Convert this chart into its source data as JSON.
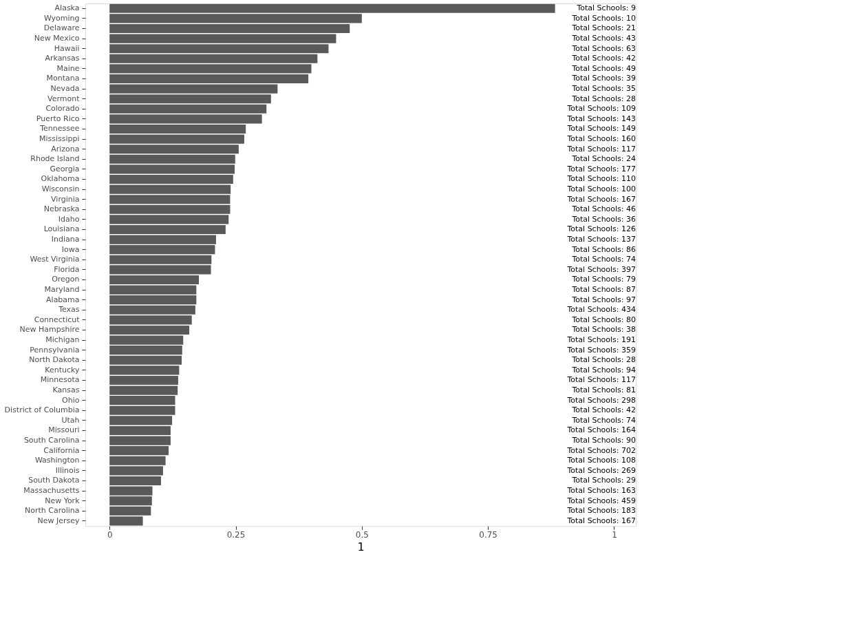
{
  "chart_data": {
    "type": "bar",
    "orientation": "horizontal",
    "xlabel": "1",
    "color": "#595959",
    "categories": [
      "Alaska",
      "Wyoming",
      "Delaware",
      "New Mexico",
      "Hawaii",
      "Arkansas",
      "Maine",
      "Montana",
      "Nevada",
      "Vermont",
      "Colorado",
      "Puerto Rico",
      "Tennessee",
      "Mississippi",
      "Arizona",
      "Rhode Island",
      "Georgia",
      "Oklahoma",
      "Wisconsin",
      "Virginia",
      "Nebraska",
      "Idaho",
      "Louisiana",
      "Indiana",
      "Iowa",
      "West Virginia",
      "Florida",
      "Oregon",
      "Maryland",
      "Alabama",
      "Texas",
      "Connecticut",
      "New Hampshire",
      "Michigan",
      "Pennsylvania",
      "North Dakota",
      "Kentucky",
      "Minnesota",
      "Kansas",
      "Ohio",
      "District of Columbia",
      "Utah",
      "Missouri",
      "South Carolina",
      "California",
      "Washington",
      "Illinois",
      "South Dakota",
      "Massachusetts",
      "New York",
      "North Carolina",
      "New Jersey"
    ],
    "values": [
      0.883,
      0.5,
      0.476,
      0.449,
      0.434,
      0.412,
      0.4,
      0.394,
      0.333,
      0.32,
      0.311,
      0.302,
      0.27,
      0.267,
      0.256,
      0.249,
      0.248,
      0.245,
      0.24,
      0.239,
      0.239,
      0.236,
      0.23,
      0.211,
      0.209,
      0.202,
      0.201,
      0.177,
      0.172,
      0.172,
      0.17,
      0.163,
      0.158,
      0.146,
      0.144,
      0.143,
      0.138,
      0.136,
      0.135,
      0.13,
      0.13,
      0.124,
      0.121,
      0.121,
      0.117,
      0.111,
      0.106,
      0.102,
      0.085,
      0.084,
      0.082,
      0.066
    ],
    "xlim": [
      -0.048,
      1.043
    ],
    "xticks": [
      0,
      0.25,
      0.5,
      0.75,
      1
    ],
    "grid": "x",
    "annotations": [
      "Total Schools: 9",
      "Total Schools: 10",
      "Total Schools: 21",
      "Total Schools: 43",
      "Total Schools: 63",
      "Total Schools: 42",
      "Total Schools: 49",
      "Total Schools: 39",
      "Total Schools: 35",
      "Total Schools: 28",
      "Total Schools: 109",
      "Total Schools: 143",
      "Total Schools: 149",
      "Total Schools: 160",
      "Total Schools: 117",
      "Total Schools: 24",
      "Total Schools: 177",
      "Total Schools: 110",
      "Total Schools: 100",
      "Total Schools: 167",
      "Total Schools: 46",
      "Total Schools: 36",
      "Total Schools: 126",
      "Total Schools: 137",
      "Total Schools: 86",
      "Total Schools: 74",
      "Total Schools: 397",
      "Total Schools: 79",
      "Total Schools: 87",
      "Total Schools: 97",
      "Total Schools: 434",
      "Total Schools: 80",
      "Total Schools: 38",
      "Total Schools: 191",
      "Total Schools: 359",
      "Total Schools: 28",
      "Total Schools: 94",
      "Total Schools: 117",
      "Total Schools: 81",
      "Total Schools: 298",
      "Total Schools: 42",
      "Total Schools: 74",
      "Total Schools: 164",
      "Total Schools: 90",
      "Total Schools: 702",
      "Total Schools: 108",
      "Total Schools: 269",
      "Total Schools: 29",
      "Total Schools: 163",
      "Total Schools: 459",
      "Total Schools: 183",
      "Total Schools: 167"
    ]
  }
}
